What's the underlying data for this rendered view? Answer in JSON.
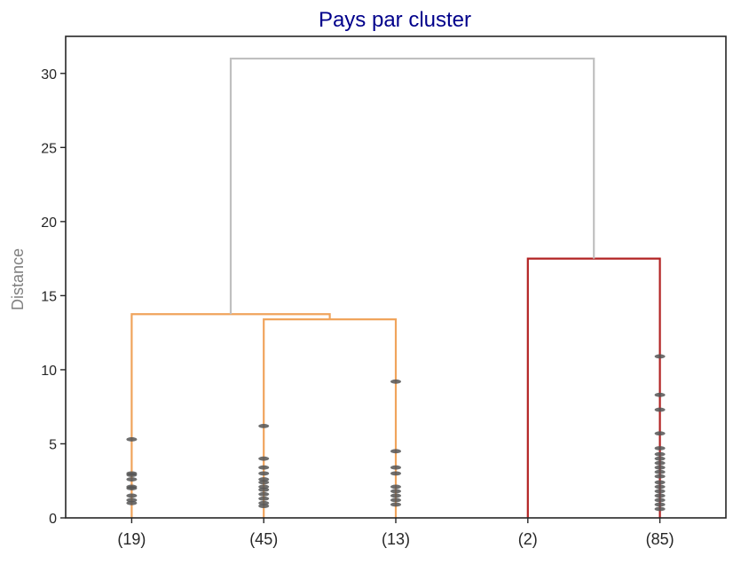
{
  "chart_data": {
    "type": "dendrogram",
    "title": "Pays par cluster",
    "ylabel": "Distance",
    "xlabel": "",
    "ylim": [
      0,
      32.5
    ],
    "yticks": [
      0,
      5,
      10,
      15,
      20,
      25,
      30
    ],
    "grid": false,
    "leaves": [
      "(19)",
      "(45)",
      "(13)",
      "(2)",
      "(85)"
    ],
    "colors": {
      "title": "#00008b",
      "ylabel": "#808080",
      "axis": "#262626",
      "cluster_a": "#f0a45c",
      "cluster_b": "#b22222",
      "root": "#c0c0c0",
      "dot": "#555555"
    },
    "links": [
      {
        "left": 1,
        "right": 2,
        "height": 13.4,
        "left_base": 0,
        "right_base": 0,
        "color": "cluster_a"
      },
      {
        "left": 0,
        "right": 1.5,
        "height": 13.75,
        "left_base": 0,
        "right_base": 13.4,
        "color": "cluster_a"
      },
      {
        "left": 3,
        "right": 4,
        "height": 17.5,
        "left_base": 0,
        "right_base": 0,
        "color": "cluster_b"
      },
      {
        "left": 0.75,
        "right": 3.5,
        "height": 31.0,
        "left_base": 13.75,
        "right_base": 17.5,
        "color": "root"
      }
    ],
    "leaf_points": [
      [
        1.0,
        1.2,
        1.5,
        2.0,
        2.1,
        2.6,
        2.9,
        3.0,
        5.3
      ],
      [
        0.8,
        1.0,
        1.3,
        1.6,
        1.9,
        2.1,
        2.4,
        2.6,
        3.0,
        3.4,
        4.0,
        6.2
      ],
      [
        0.9,
        1.2,
        1.5,
        1.8,
        2.1,
        3.0,
        3.4,
        4.5,
        9.2
      ],
      [],
      [
        0.6,
        0.9,
        1.2,
        1.5,
        1.8,
        2.1,
        2.4,
        2.8,
        3.1,
        3.4,
        3.7,
        4.0,
        4.3,
        4.7,
        5.7,
        7.3,
        8.3,
        10.9
      ]
    ]
  }
}
